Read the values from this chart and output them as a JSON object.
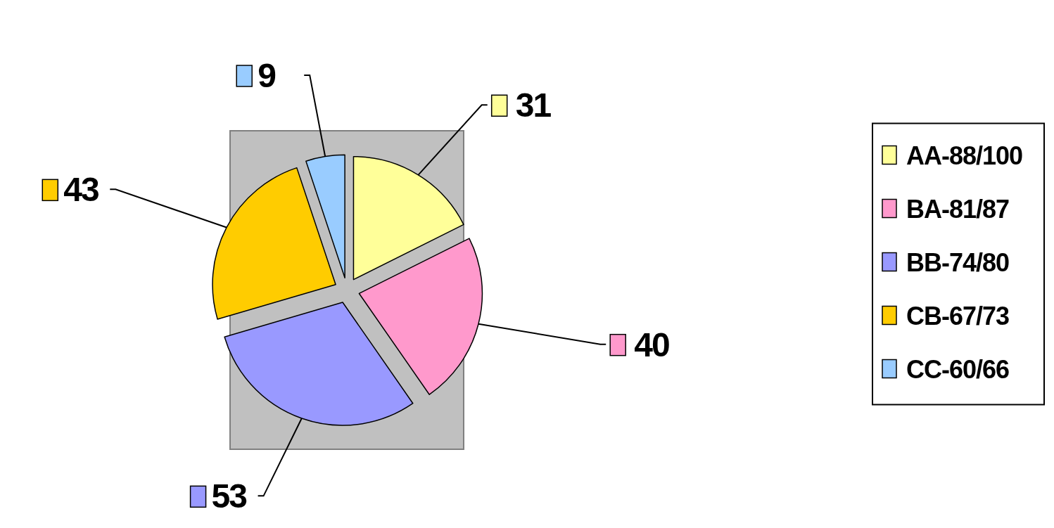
{
  "chart_data": {
    "type": "pie",
    "categories": [
      "AA-88/100",
      "BA-81/87",
      "BB-74/80",
      "CB-67/73",
      "CC-60/66"
    ],
    "values": [
      31,
      40,
      53,
      43,
      9
    ],
    "colors": [
      "#ffff99",
      "#ff99cc",
      "#9999ff",
      "#ffcc00",
      "#99ccff"
    ],
    "data_labels": true,
    "legend": "right"
  }
}
